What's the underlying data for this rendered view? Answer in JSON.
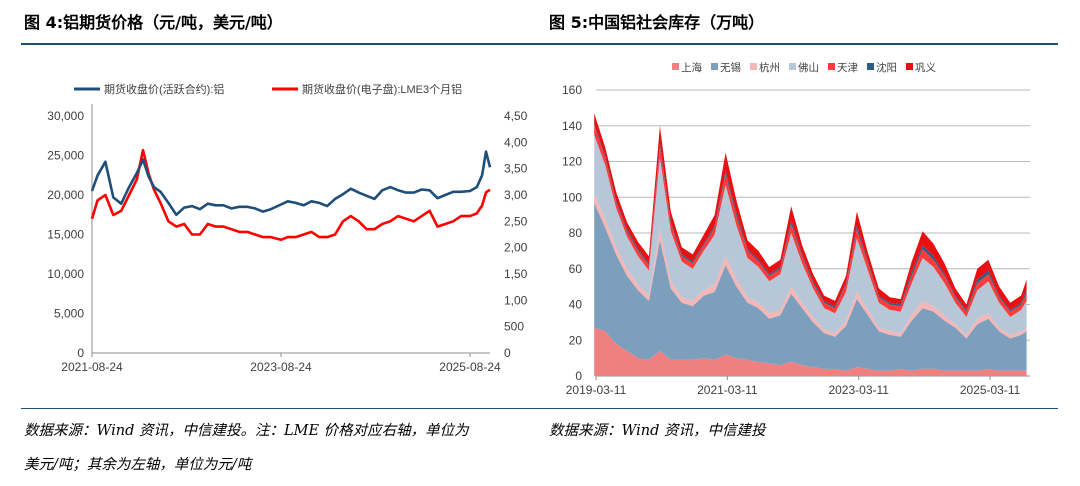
{
  "fig4": {
    "title": "图 4:铝期货价格（元/吨，美元/吨）",
    "source_line1": "数据来源：Wind 资讯，中信建投。注：LME 价格对应右轴，单位为",
    "source_line2": "美元/吨；其余为左轴，单位为元/吨"
  },
  "fig5": {
    "title": "图 5:中国铝社会库存（万吨）",
    "source": "数据来源：Wind 资讯，中信建投"
  },
  "chart_data": [
    {
      "type": "line",
      "x_tick_labels": [
        "2021-08-24",
        "2023-08-24",
        "2025-08-24"
      ],
      "y_left_ticks": [
        "0",
        "5,000",
        "10,000",
        "15,000",
        "20,000",
        "25,000",
        "30,000"
      ],
      "y_right_ticks": [
        "0",
        "500",
        "1,000",
        "1,500",
        "2,000",
        "2,500",
        "3,000",
        "3,500",
        "4,000",
        "4,500"
      ],
      "ylim_left": [
        0,
        30000
      ],
      "ylim_right": [
        0,
        4500
      ],
      "grid": false,
      "legend_position": "top",
      "series": [
        {
          "name": "期货收盘价(活跃合约):铝",
          "axis": "left",
          "color": "#1f4e79",
          "x": [
            "2021-08-24",
            "2021-09-15",
            "2021-10-15",
            "2021-11-15",
            "2021-12-15",
            "2022-01-15",
            "2022-02-15",
            "2022-03-08",
            "2022-03-30",
            "2022-04-20",
            "2022-05-15",
            "2022-06-15",
            "2022-07-15",
            "2022-08-15",
            "2022-09-15",
            "2022-10-15",
            "2022-11-15",
            "2022-12-15",
            "2023-01-15",
            "2023-02-15",
            "2023-03-15",
            "2023-04-15",
            "2023-05-15",
            "2023-06-15",
            "2023-07-15",
            "2023-08-24",
            "2023-09-20",
            "2023-10-20",
            "2023-11-20",
            "2023-12-20",
            "2024-01-20",
            "2024-02-20",
            "2024-03-20",
            "2024-04-20",
            "2024-05-20",
            "2024-06-20",
            "2024-07-20",
            "2024-08-20",
            "2024-09-20",
            "2024-10-20",
            "2024-11-20",
            "2024-12-20",
            "2025-01-20",
            "2025-02-20",
            "2025-03-20",
            "2025-04-20",
            "2025-05-20",
            "2025-06-20",
            "2025-07-20",
            "2025-08-24",
            "2025-09-20",
            "2025-10-10",
            "2025-10-25",
            "2025-11-10"
          ],
          "values": [
            20500,
            22500,
            24200,
            19700,
            18900,
            21000,
            22800,
            24500,
            22300,
            21000,
            20400,
            19000,
            17500,
            18400,
            18600,
            18200,
            18900,
            18700,
            18700,
            18300,
            18500,
            18500,
            18300,
            17900,
            18200,
            18800,
            19200,
            19000,
            18700,
            19200,
            19000,
            18600,
            19500,
            20100,
            20800,
            20300,
            19900,
            19500,
            20600,
            21000,
            20600,
            20300,
            20300,
            20700,
            20600,
            19600,
            20000,
            20400,
            20400,
            20500,
            21000,
            22500,
            25500,
            23500
          ]
        },
        {
          "name": "期货收盘价(电子盘):LME3个月铝",
          "axis": "right",
          "color": "#ff0000",
          "x": [
            "2021-08-24",
            "2021-09-15",
            "2021-10-15",
            "2021-11-15",
            "2021-12-15",
            "2022-01-15",
            "2022-02-15",
            "2022-03-08",
            "2022-03-30",
            "2022-04-20",
            "2022-05-15",
            "2022-06-15",
            "2022-07-15",
            "2022-08-15",
            "2022-09-15",
            "2022-10-15",
            "2022-11-15",
            "2022-12-15",
            "2023-01-15",
            "2023-02-15",
            "2023-03-15",
            "2023-04-15",
            "2023-05-15",
            "2023-06-15",
            "2023-07-15",
            "2023-08-24",
            "2023-09-20",
            "2023-10-20",
            "2023-11-20",
            "2023-12-20",
            "2024-01-20",
            "2024-02-20",
            "2024-03-20",
            "2024-04-20",
            "2024-05-20",
            "2024-06-20",
            "2024-07-20",
            "2024-08-20",
            "2024-09-20",
            "2024-10-20",
            "2024-11-20",
            "2024-12-20",
            "2025-01-20",
            "2025-02-20",
            "2025-03-20",
            "2025-04-20",
            "2025-05-20",
            "2025-06-20",
            "2025-07-20",
            "2025-08-24",
            "2025-09-20",
            "2025-10-10",
            "2025-10-25",
            "2025-11-10"
          ],
          "values": [
            2550,
            2900,
            3000,
            2620,
            2700,
            3000,
            3300,
            3850,
            3400,
            3100,
            2850,
            2500,
            2400,
            2450,
            2250,
            2250,
            2450,
            2400,
            2400,
            2350,
            2300,
            2300,
            2250,
            2200,
            2200,
            2150,
            2200,
            2200,
            2250,
            2300,
            2200,
            2200,
            2250,
            2500,
            2600,
            2500,
            2350,
            2350,
            2450,
            2500,
            2600,
            2550,
            2500,
            2600,
            2700,
            2400,
            2450,
            2500,
            2600,
            2600,
            2650,
            2800,
            3050,
            3100
          ]
        }
      ]
    },
    {
      "type": "area",
      "stacked": true,
      "x_tick_labels": [
        "2019-03-11",
        "2021-03-11",
        "2023-03-11",
        "2025-03-11"
      ],
      "y_ticks": [
        "0",
        "20",
        "40",
        "60",
        "80",
        "100",
        "120",
        "140",
        "160"
      ],
      "ylim": [
        0,
        160
      ],
      "grid": true,
      "legend_position": "top",
      "x": [
        "2019-03",
        "2019-05",
        "2019-07",
        "2019-09",
        "2019-11",
        "2020-01",
        "2020-03",
        "2020-05",
        "2020-07",
        "2020-09",
        "2020-11",
        "2021-01",
        "2021-03",
        "2021-05",
        "2021-07",
        "2021-09",
        "2021-11",
        "2022-01",
        "2022-03",
        "2022-05",
        "2022-07",
        "2022-09",
        "2022-11",
        "2023-01",
        "2023-03",
        "2023-05",
        "2023-07",
        "2023-09",
        "2023-11",
        "2024-01",
        "2024-03",
        "2024-05",
        "2024-07",
        "2024-09",
        "2024-11",
        "2025-01",
        "2025-03",
        "2025-05",
        "2025-07",
        "2025-09",
        "2025-10"
      ],
      "series": [
        {
          "name": "上海",
          "color": "#f08080",
          "values": [
            27,
            25,
            18,
            14,
            10,
            9,
            14,
            9,
            9,
            9,
            10,
            9,
            12,
            10,
            9,
            8,
            7,
            6,
            8,
            6,
            5,
            4,
            4,
            3,
            5,
            4,
            3,
            3,
            4,
            3,
            4,
            4,
            3,
            3,
            3,
            3,
            4,
            3,
            3,
            3,
            3
          ]
        },
        {
          "name": "无锡",
          "color": "#7b9fbd",
          "values": [
            70,
            58,
            50,
            42,
            38,
            33,
            62,
            40,
            32,
            30,
            35,
            38,
            50,
            40,
            32,
            30,
            25,
            28,
            38,
            32,
            25,
            20,
            18,
            25,
            38,
            30,
            22,
            20,
            18,
            28,
            34,
            32,
            28,
            24,
            18,
            26,
            28,
            22,
            18,
            20,
            22
          ]
        },
        {
          "name": "杭州",
          "color": "#f4b6b6",
          "values": [
            5,
            5,
            4,
            4,
            3,
            3,
            6,
            4,
            3,
            3,
            3,
            4,
            5,
            4,
            3,
            3,
            3,
            3,
            4,
            3,
            3,
            2,
            2,
            3,
            4,
            3,
            2,
            2,
            2,
            3,
            4,
            3,
            3,
            2,
            2,
            3,
            3,
            2,
            2,
            2,
            2
          ]
        },
        {
          "name": "佛山",
          "color": "#b7c7d8",
          "values": [
            33,
            30,
            22,
            18,
            16,
            14,
            40,
            28,
            20,
            18,
            22,
            28,
            40,
            30,
            22,
            20,
            18,
            20,
            30,
            22,
            16,
            12,
            11,
            16,
            30,
            22,
            14,
            12,
            12,
            18,
            24,
            22,
            18,
            12,
            10,
            16,
            18,
            14,
            10,
            12,
            15
          ]
        },
        {
          "name": "天津",
          "color": "#ff3b3b",
          "values": [
            5,
            4,
            3,
            3,
            3,
            3,
            6,
            4,
            3,
            3,
            3,
            4,
            6,
            5,
            4,
            3,
            3,
            3,
            5,
            4,
            3,
            3,
            3,
            4,
            5,
            4,
            3,
            3,
            3,
            4,
            5,
            4,
            4,
            3,
            3,
            4,
            4,
            3,
            3,
            3,
            4
          ]
        },
        {
          "name": "沈阳",
          "color": "#2e5c87",
          "values": [
            1,
            1,
            1,
            1,
            1,
            1,
            2,
            1,
            1,
            1,
            1,
            1,
            2,
            2,
            1,
            1,
            1,
            1,
            2,
            1,
            1,
            1,
            1,
            1,
            2,
            1,
            1,
            1,
            1,
            2,
            2,
            2,
            1,
            1,
            1,
            2,
            2,
            1,
            1,
            1,
            2
          ]
        },
        {
          "name": "巩义",
          "color": "#e81010",
          "values": [
            6,
            5,
            5,
            4,
            4,
            4,
            10,
            6,
            4,
            4,
            5,
            6,
            10,
            7,
            5,
            5,
            4,
            4,
            8,
            5,
            4,
            3,
            3,
            4,
            8,
            5,
            4,
            3,
            3,
            6,
            8,
            7,
            6,
            4,
            3,
            6,
            6,
            5,
            4,
            4,
            6
          ]
        }
      ]
    }
  ]
}
